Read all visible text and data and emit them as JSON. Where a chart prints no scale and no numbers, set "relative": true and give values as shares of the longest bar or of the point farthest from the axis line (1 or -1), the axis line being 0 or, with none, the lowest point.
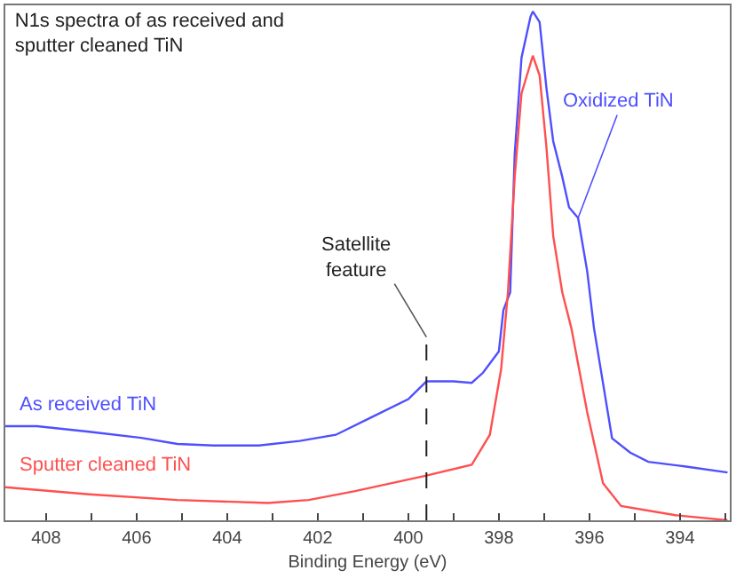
{
  "chart_data": {
    "type": "line",
    "relative": true,
    "title": "N1s spectra of as received and\nsputter cleaned TiN",
    "xlabel": "Binding Energy (eV)",
    "xlim": [
      408.9,
      392.9
    ],
    "xticks": [
      408,
      {
        "value": 407,
        "label": null
      },
      406,
      {
        "value": 405,
        "label": null
      },
      404,
      {
        "value": 403,
        "label": null
      },
      402,
      {
        "value": 401,
        "label": null
      },
      400,
      {
        "value": 399,
        "label": null
      },
      398,
      {
        "value": 397,
        "label": null
      },
      396,
      {
        "value": 395,
        "label": null
      },
      394,
      {
        "value": 393,
        "label": null
      }
    ],
    "legend": false,
    "marker": "none",
    "line_style": "solid",
    "series": [
      {
        "name": "As received TiN",
        "color": "#4f4fff",
        "x": [
          408.9,
          408.2,
          407.05,
          405.9,
          405.1,
          404.3,
          403.3,
          402.4,
          401.6,
          400.8,
          400.0,
          399.6,
          399.0,
          398.6,
          398.35,
          398.0,
          397.9,
          397.75,
          397.65,
          397.5,
          397.3,
          397.25,
          397.1,
          396.95,
          396.8,
          396.6,
          396.45,
          396.25,
          396.05,
          395.9,
          395.5,
          395.1,
          394.7,
          393.9,
          392.95
        ],
        "values": [
          0.185,
          0.185,
          0.174,
          0.162,
          0.15,
          0.147,
          0.147,
          0.156,
          0.168,
          0.203,
          0.238,
          0.273,
          0.273,
          0.27,
          0.29,
          0.332,
          0.413,
          0.448,
          0.72,
          0.909,
          0.99,
          1.0,
          0.979,
          0.85,
          0.745,
          0.675,
          0.615,
          0.594,
          0.49,
          0.378,
          0.161,
          0.133,
          0.115,
          0.106,
          0.094
        ]
      },
      {
        "name": "Sputter cleaned TiN",
        "color": "#ff4f4f",
        "x": [
          408.9,
          407.05,
          405.1,
          403.1,
          402.2,
          401.2,
          399.6,
          398.6,
          398.2,
          397.95,
          397.8,
          397.65,
          397.5,
          397.25,
          397.1,
          396.95,
          396.8,
          396.6,
          396.4,
          396.05,
          395.7,
          395.3,
          394.1,
          392.95
        ],
        "values": [
          0.065,
          0.051,
          0.04,
          0.034,
          0.04,
          0.057,
          0.088,
          0.109,
          0.168,
          0.297,
          0.448,
          0.675,
          0.839,
          0.913,
          0.874,
          0.734,
          0.559,
          0.448,
          0.378,
          0.213,
          0.073,
          0.028,
          0.01,
          0.0
        ]
      }
    ],
    "annotations": [
      {
        "text": "Oxidized TiN",
        "x": 396.25,
        "y": 0.594
      }
    ],
    "ref_lines": [
      {
        "axis": "x",
        "value": 399.6,
        "label": "Satellite\nfeature",
        "color": "#222222",
        "line_style": "dashed"
      }
    ]
  }
}
